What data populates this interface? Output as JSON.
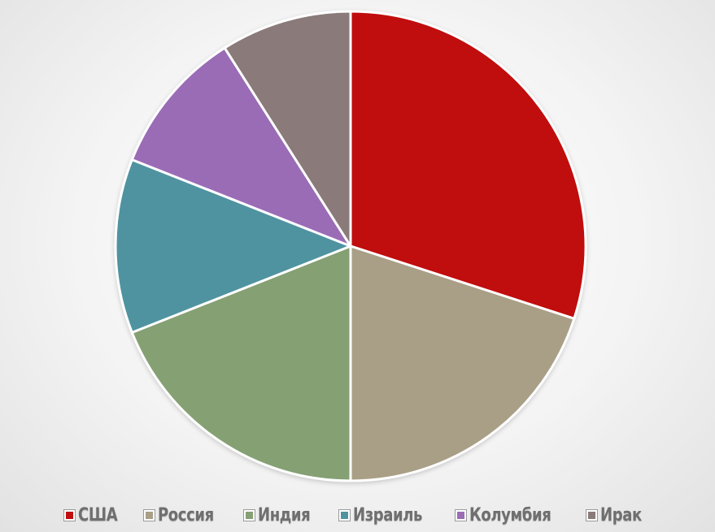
{
  "chart_data": {
    "type": "pie",
    "title": "",
    "legend_position": "bottom",
    "slices": [
      {
        "name": "США",
        "value": 30,
        "color": "#c00f0f"
      },
      {
        "name": "Россия",
        "value": 20,
        "color": "#a99f86"
      },
      {
        "name": "Индия",
        "value": 19,
        "color": "#85a073"
      },
      {
        "name": "Израиль",
        "value": 12,
        "color": "#4f93a0"
      },
      {
        "name": "Колумбия",
        "value": 10,
        "color": "#9a6cb6"
      },
      {
        "name": "Ирак",
        "value": 9,
        "color": "#8a7a7a"
      }
    ]
  }
}
